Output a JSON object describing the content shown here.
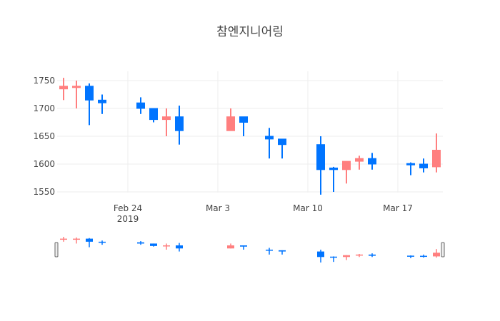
{
  "chart_data": {
    "type": "candlestick",
    "title": "참엔지니어링",
    "xlabel": "",
    "ylabel": "",
    "increasing_color": "#FF7F7F",
    "decreasing_color": "#0074FF",
    "grid": true,
    "ylim": [
      1540,
      1768
    ],
    "yticks": [
      1550,
      1600,
      1650,
      1700,
      1750
    ],
    "xticks": [
      {
        "date": "2019-02-24",
        "label": "Feb 24",
        "sublabel": "2019"
      },
      {
        "date": "2019-03-03",
        "label": "Mar 3",
        "sublabel": ""
      },
      {
        "date": "2019-03-10",
        "label": "Mar 10",
        "sublabel": ""
      },
      {
        "date": "2019-03-17",
        "label": "Mar 17",
        "sublabel": ""
      }
    ],
    "xlim": [
      "2019-02-18",
      "2019-03-20T12:00"
    ],
    "rangeslider": true,
    "data": [
      {
        "date": "2019-02-19",
        "open": 1735,
        "high": 1755,
        "low": 1715,
        "close": 1740
      },
      {
        "date": "2019-02-20",
        "open": 1740,
        "high": 1750,
        "low": 1700,
        "close": 1740
      },
      {
        "date": "2019-02-21",
        "open": 1740,
        "high": 1745,
        "low": 1670,
        "close": 1715
      },
      {
        "date": "2019-02-22",
        "open": 1715,
        "high": 1725,
        "low": 1690,
        "close": 1710
      },
      {
        "date": "2019-02-25",
        "open": 1710,
        "high": 1720,
        "low": 1690,
        "close": 1700
      },
      {
        "date": "2019-02-26",
        "open": 1700,
        "high": 1700,
        "low": 1675,
        "close": 1680
      },
      {
        "date": "2019-02-27",
        "open": 1680,
        "high": 1700,
        "low": 1650,
        "close": 1685
      },
      {
        "date": "2019-02-28",
        "open": 1685,
        "high": 1705,
        "low": 1635,
        "close": 1660
      },
      {
        "date": "2019-03-04",
        "open": 1660,
        "high": 1700,
        "low": 1660,
        "close": 1685
      },
      {
        "date": "2019-03-05",
        "open": 1685,
        "high": 1685,
        "low": 1650,
        "close": 1675
      },
      {
        "date": "2019-03-07",
        "open": 1650,
        "high": 1665,
        "low": 1610,
        "close": 1645
      },
      {
        "date": "2019-03-08",
        "open": 1645,
        "high": 1645,
        "low": 1610,
        "close": 1635
      },
      {
        "date": "2019-03-11",
        "open": 1635,
        "high": 1650,
        "low": 1545,
        "close": 1590
      },
      {
        "date": "2019-03-12",
        "open": 1593,
        "high": 1595,
        "low": 1550,
        "close": 1590
      },
      {
        "date": "2019-03-13",
        "open": 1590,
        "high": 1605,
        "low": 1565,
        "close": 1605
      },
      {
        "date": "2019-03-14",
        "open": 1605,
        "high": 1615,
        "low": 1590,
        "close": 1610
      },
      {
        "date": "2019-03-15",
        "open": 1610,
        "high": 1620,
        "low": 1590,
        "close": 1600
      },
      {
        "date": "2019-03-18",
        "open": 1601,
        "high": 1603,
        "low": 1580,
        "close": 1599
      },
      {
        "date": "2019-03-19",
        "open": 1600,
        "high": 1610,
        "low": 1585,
        "close": 1593
      },
      {
        "date": "2019-03-20",
        "open": 1595,
        "high": 1655,
        "low": 1585,
        "close": 1625
      }
    ]
  }
}
